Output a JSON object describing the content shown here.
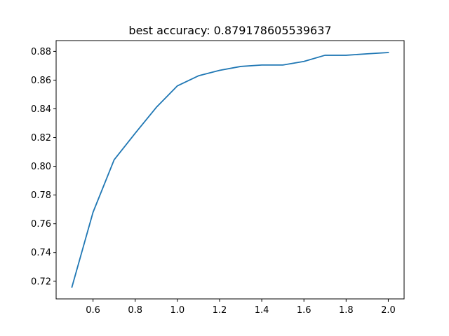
{
  "chart_data": {
    "type": "line",
    "title": "best accuracy: 0.879178605539637",
    "xlabel": "",
    "ylabel": "",
    "xlim": [
      0.425,
      2.075
    ],
    "ylim": [
      0.7077,
      0.8875
    ],
    "xticks": [
      "0.6",
      "0.8",
      "1.0",
      "1.2",
      "1.4",
      "1.6",
      "1.8",
      "2.0"
    ],
    "yticks": [
      "0.72",
      "0.74",
      "0.76",
      "0.78",
      "0.80",
      "0.82",
      "0.84",
      "0.86",
      "0.88"
    ],
    "grid": false,
    "series": [
      {
        "color": "#1f77b4",
        "x": [
          0.5,
          0.6,
          0.7,
          0.8,
          0.9,
          1.0,
          1.1,
          1.2,
          1.3,
          1.4,
          1.5,
          1.6,
          1.7,
          1.8,
          1.9,
          2.0
        ],
        "y": [
          0.716,
          0.768,
          0.8045,
          0.823,
          0.841,
          0.856,
          0.863,
          0.8668,
          0.8695,
          0.8705,
          0.8705,
          0.873,
          0.8773,
          0.8773,
          0.8783,
          0.8792
        ]
      }
    ]
  }
}
